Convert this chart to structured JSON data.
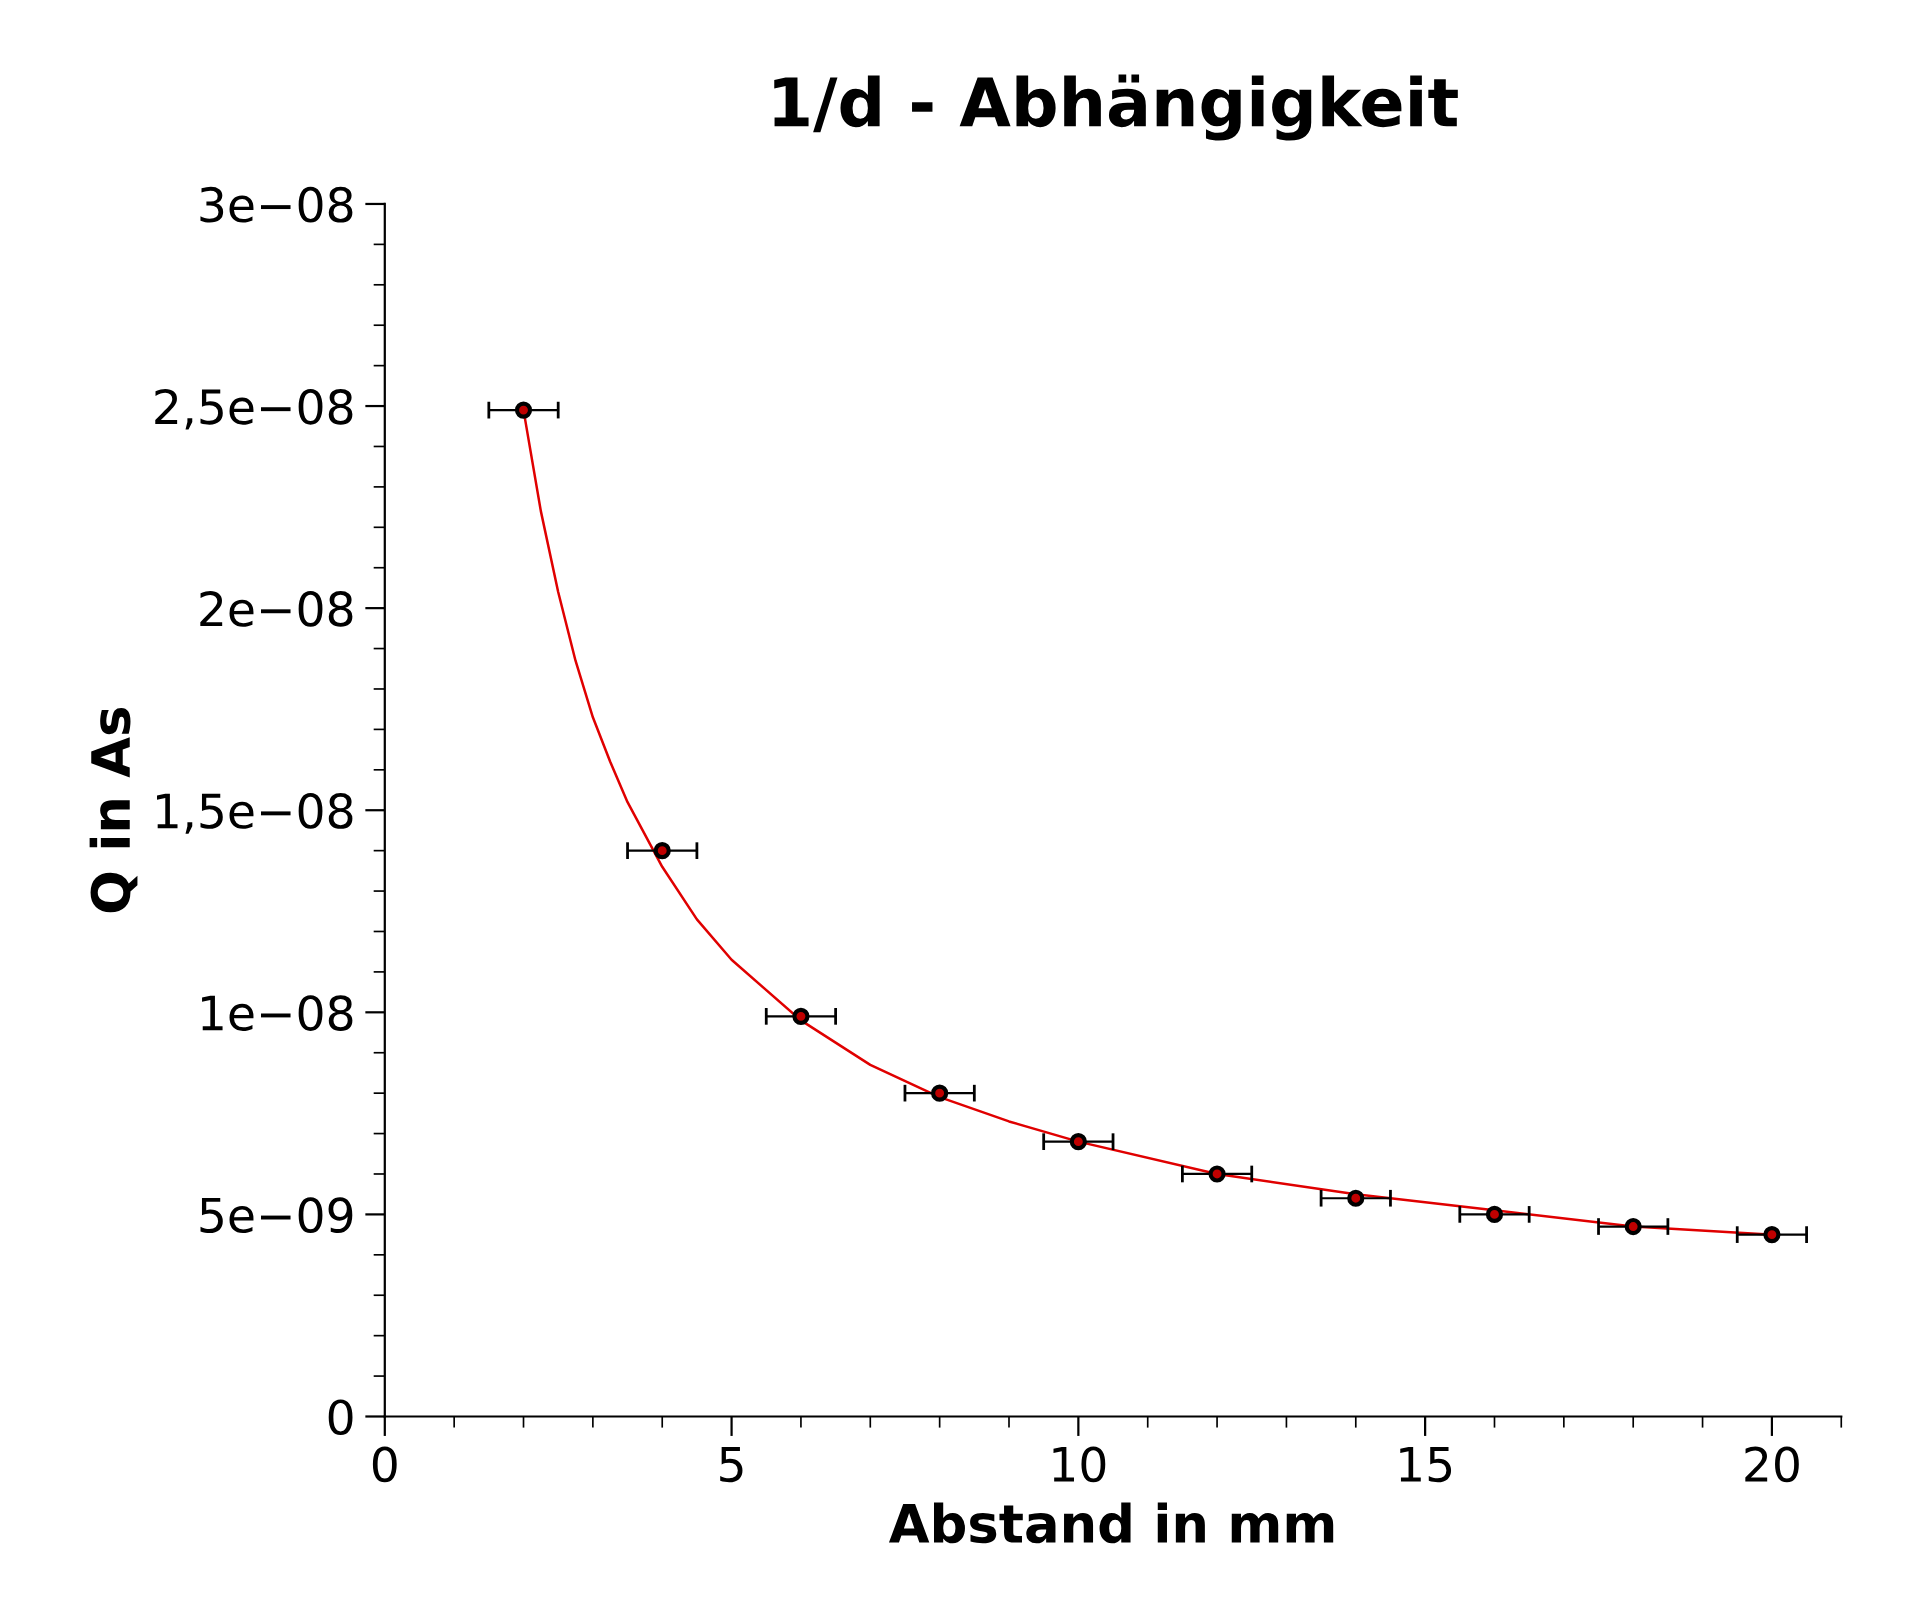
{
  "chart_data": {
    "type": "scatter",
    "title": "1/d - Abhängigkeit",
    "xlabel": "Abstand in mm",
    "ylabel": "Q in As",
    "xlim": [
      0,
      21
    ],
    "xticks": [
      0,
      5,
      10,
      15,
      20
    ],
    "ylim": [
      0,
      3e-08
    ],
    "yticks": [
      {
        "value": 0,
        "label": "0"
      },
      {
        "value": 5e-09,
        "label": "5e−09"
      },
      {
        "value": 1e-08,
        "label": "1e−08"
      },
      {
        "value": 1.5e-08,
        "label": "1,5e−08"
      },
      {
        "value": 2e-08,
        "label": "2e−08"
      },
      {
        "value": 2.5e-08,
        "label": "2,5e−08"
      },
      {
        "value": 3e-08,
        "label": "3e−08"
      }
    ],
    "grid": false,
    "legend": false,
    "marker": "circle",
    "series": [
      {
        "color": "#000000",
        "x": [
          2,
          4,
          6,
          8,
          10,
          12,
          14,
          16,
          18,
          20
        ],
        "values": [
          2.49e-08,
          1.4e-08,
          9.9e-09,
          8e-09,
          6.8e-09,
          6e-09,
          5.4e-09,
          5e-09,
          4.7e-09,
          4.5e-09
        ],
        "xerrors": [
          0.5,
          0.5,
          0.5,
          0.5,
          0.5,
          0.5,
          0.5,
          0.5,
          0.5,
          0.5
        ]
      },
      {
        "type": "line",
        "color": "#e00000",
        "marker": "none",
        "x": [
          2,
          2.25,
          2.5,
          2.75,
          3,
          3.25,
          3.5,
          4,
          4.5,
          5,
          6,
          7,
          8,
          9,
          10,
          12,
          14,
          16,
          18,
          20
        ],
        "values": [
          2.49e-08,
          2.24e-08,
          2.04e-08,
          1.87e-08,
          1.73e-08,
          1.62e-08,
          1.52e-08,
          1.36e-08,
          1.23e-08,
          1.13e-08,
          9.8e-09,
          8.7e-09,
          7.9e-09,
          7.3e-09,
          6.8e-09,
          6e-09,
          5.5e-09,
          5.1e-09,
          4.7e-09,
          4.5e-09
        ]
      }
    ]
  }
}
